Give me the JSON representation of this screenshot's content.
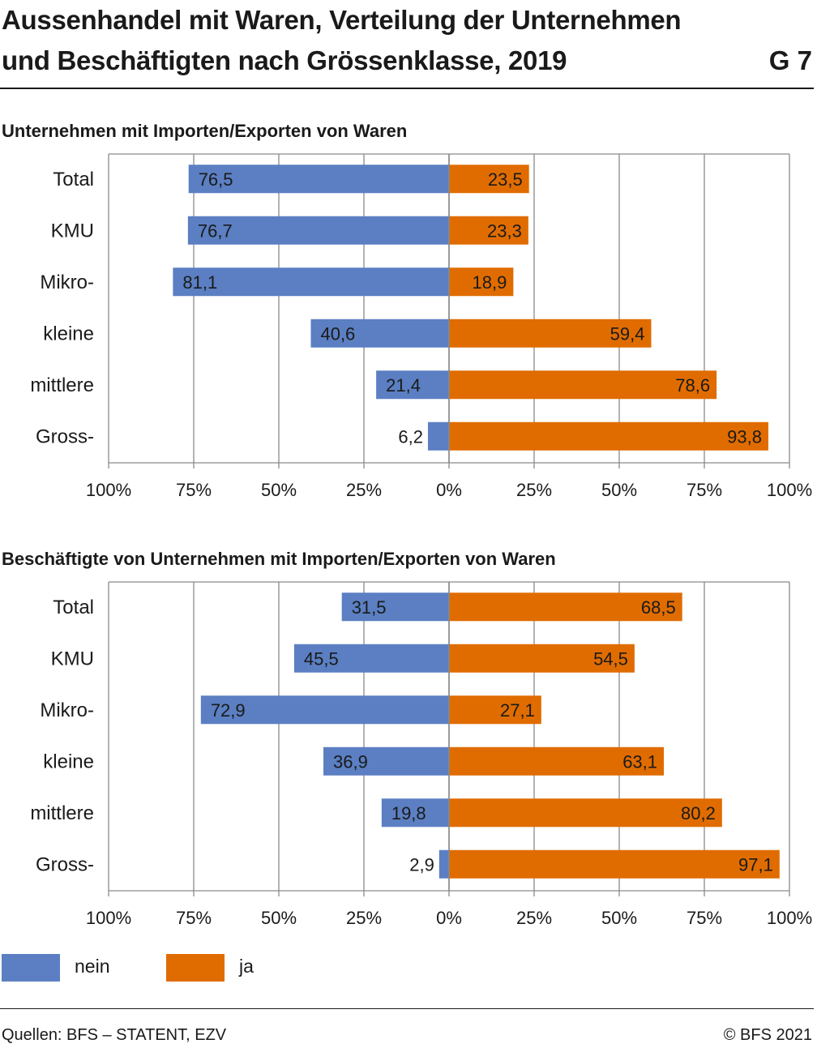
{
  "title_line1": "Aussenhandel mit Waren, Verteilung der Unternehmen",
  "title_line2": "und Beschäftigten nach Grössenklasse, 2019",
  "figure_id": "G 7",
  "colors": {
    "nein": "#5b7fc2",
    "ja": "#e06c00",
    "grid": "#8a8a8a"
  },
  "chart_data": [
    {
      "type": "bar",
      "orientation": "horizontal-diverging",
      "title": "Unternehmen mit Importen/Exporten von Waren",
      "categories": [
        "Total",
        "KMU",
        "Mikro-",
        "kleine",
        "mittlere",
        "Gross-"
      ],
      "series": [
        {
          "name": "nein",
          "values": [
            76.5,
            76.7,
            81.1,
            40.6,
            21.4,
            6.2
          ],
          "labels": [
            "76,5",
            "76,7",
            "81,1",
            "40,6",
            "21,4",
            "6,2"
          ]
        },
        {
          "name": "ja",
          "values": [
            23.5,
            23.3,
            18.9,
            59.4,
            78.6,
            93.8
          ],
          "labels": [
            "23,5",
            "23,3",
            "18,9",
            "59,4",
            "78,6",
            "93,8"
          ]
        }
      ],
      "xlim": [
        -100,
        100
      ],
      "xticks": [
        "100%",
        "75%",
        "50%",
        "25%",
        "0%",
        "25%",
        "50%",
        "75%",
        "100%"
      ]
    },
    {
      "type": "bar",
      "orientation": "horizontal-diverging",
      "title": "Beschäftigte von Unternehmen mit Importen/Exporten von Waren",
      "categories": [
        "Total",
        "KMU",
        "Mikro-",
        "kleine",
        "mittlere",
        "Gross-"
      ],
      "series": [
        {
          "name": "nein",
          "values": [
            31.5,
            45.5,
            72.9,
            36.9,
            19.8,
            2.9
          ],
          "labels": [
            "31,5",
            "45,5",
            "72,9",
            "36,9",
            "19,8",
            "2,9"
          ]
        },
        {
          "name": "ja",
          "values": [
            68.5,
            54.5,
            27.1,
            63.1,
            80.2,
            97.1
          ],
          "labels": [
            "68,5",
            "54,5",
            "27,1",
            "63,1",
            "80,2",
            "97,1"
          ]
        }
      ],
      "xlim": [
        -100,
        100
      ],
      "xticks": [
        "100%",
        "75%",
        "50%",
        "25%",
        "0%",
        "25%",
        "50%",
        "75%",
        "100%"
      ]
    }
  ],
  "legend": [
    {
      "label": "nein",
      "color": "#5b7fc2"
    },
    {
      "label": "ja",
      "color": "#e06c00"
    }
  ],
  "footer": {
    "source": "Quellen: BFS – STATENT, EZV",
    "copyright": "© BFS 2021"
  }
}
